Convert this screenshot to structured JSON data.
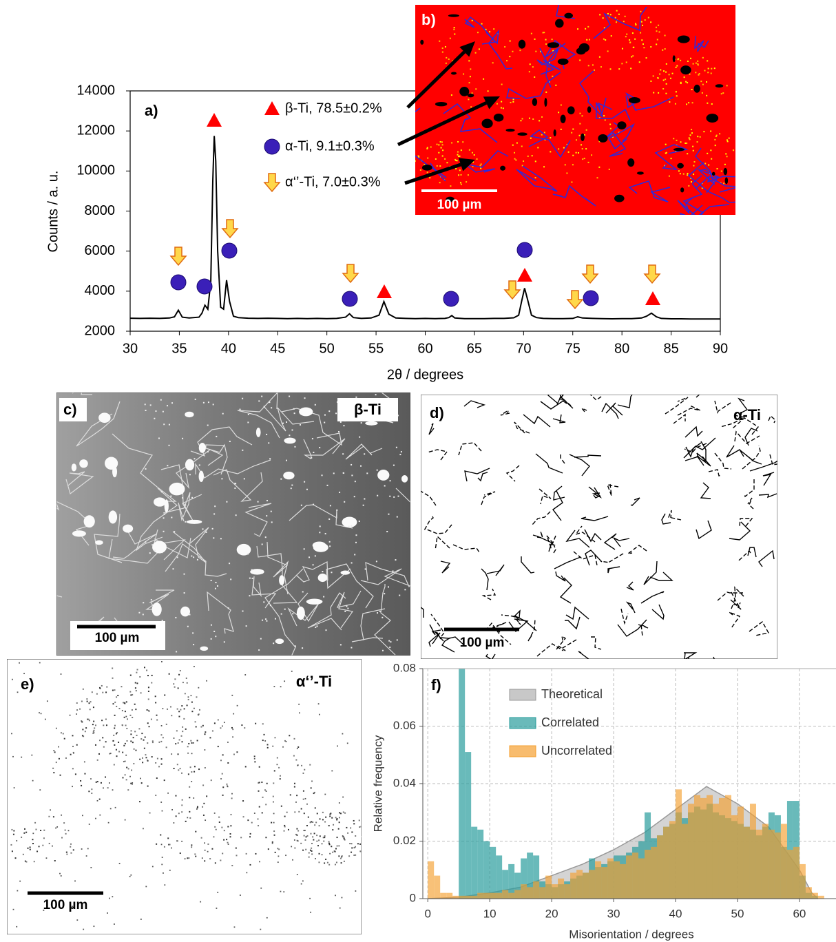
{
  "chart_data": [
    {
      "type": "line",
      "panel_label": "a)",
      "x_label": "2θ / degrees",
      "y_label": "Counts / a. u.",
      "annotations": [
        "β-Ti, 78.5±0.2%",
        "α-Ti, 9.1±0.3%",
        "α‘’-Ti, 7.0±0.3%"
      ],
      "color": "#000000",
      "x": [
        30,
        31,
        32,
        33,
        34,
        34.5,
        34.9,
        35.3,
        36,
        37,
        37.3,
        37.6,
        37.9,
        38.2,
        38.4,
        38.55,
        38.7,
        38.9,
        39.2,
        39.5,
        39.8,
        40.1,
        40.5,
        41,
        42,
        43,
        44,
        45,
        46,
        47,
        48,
        49,
        50,
        51,
        51.9,
        52.3,
        52.7,
        53.5,
        54.5,
        55.3,
        55.8,
        56.3,
        57,
        58,
        59,
        60,
        61,
        62,
        62.4,
        62.7,
        63,
        64,
        65,
        66,
        67,
        68,
        69,
        69.5,
        69.8,
        70.1,
        70.4,
        70.8,
        71.3,
        72,
        73,
        74,
        75,
        75.5,
        76,
        77,
        78,
        79,
        80,
        81,
        82,
        82.5,
        83,
        83.5,
        84,
        85,
        86,
        87,
        88,
        89,
        90
      ],
      "values": [
        2650,
        2640,
        2650,
        2640,
        2660,
        2720,
        3050,
        2700,
        2660,
        2700,
        2900,
        3300,
        3100,
        4500,
        9500,
        11750,
        10500,
        6000,
        3200,
        3100,
        4550,
        3500,
        2750,
        2680,
        2650,
        2640,
        2650,
        2640,
        2630,
        2640,
        2630,
        2640,
        2630,
        2640,
        2700,
        2870,
        2680,
        2640,
        2660,
        2800,
        3480,
        2850,
        2660,
        2640,
        2630,
        2640,
        2630,
        2640,
        2680,
        2780,
        2660,
        2630,
        2630,
        2630,
        2640,
        2640,
        2670,
        2800,
        3500,
        4150,
        3600,
        2800,
        2680,
        2640,
        2630,
        2630,
        2640,
        2720,
        2660,
        2640,
        2630,
        2620,
        2630,
        2630,
        2660,
        2750,
        2900,
        2720,
        2640,
        2620,
        2620,
        2610,
        2610,
        2610,
        2610
      ],
      "xlim": [
        30,
        90
      ],
      "xticks": [
        30,
        35,
        40,
        45,
        50,
        55,
        60,
        65,
        70,
        75,
        80,
        85,
        90
      ],
      "ylim": [
        2000,
        14000
      ],
      "yticks": [
        2000,
        4000,
        6000,
        8000,
        10000,
        12000,
        14000
      ]
    },
    {
      "type": "histogram",
      "panel_label": "f)",
      "x_label": "Misorientation / degrees",
      "y_label": "Relative frequency",
      "bins": [
        0,
        1,
        2,
        3,
        4,
        5,
        6,
        7,
        8,
        9,
        10,
        11,
        12,
        13,
        14,
        15,
        16,
        17,
        18,
        19,
        20,
        21,
        22,
        23,
        24,
        25,
        26,
        27,
        28,
        29,
        30,
        31,
        32,
        33,
        34,
        35,
        36,
        37,
        38,
        39,
        40,
        41,
        42,
        43,
        44,
        45,
        46,
        47,
        48,
        49,
        50,
        51,
        52,
        53,
        54,
        55,
        56,
        57,
        58,
        59,
        60,
        61,
        62,
        63,
        64,
        65
      ],
      "series": [
        {
          "name": "Theoretical",
          "color": "#b0b0b0",
          "x": [
            0,
            5,
            10,
            15,
            20,
            25,
            30,
            35,
            40,
            45,
            50,
            55,
            60,
            62,
            63
          ],
          "values": [
            0,
            0.0005,
            0.002,
            0.004,
            0.008,
            0.012,
            0.017,
            0.023,
            0.031,
            0.039,
            0.033,
            0.025,
            0.01,
            0.002,
            0
          ]
        },
        {
          "name": "Correlated",
          "color": "#2a9d9c",
          "values": [
            0,
            0,
            0,
            0,
            0,
            0.08,
            0.051,
            0.025,
            0.024,
            0.02,
            0.018,
            0.015,
            0.01,
            0.012,
            0.009,
            0.014,
            0.016,
            0.015,
            0.006,
            0.005,
            0.004,
            0.005,
            0.006,
            0.007,
            0.008,
            0.009,
            0.014,
            0.011,
            0.012,
            0.013,
            0.015,
            0.015,
            0.016,
            0.018,
            0.02,
            0.03,
            0.021,
            0.022,
            0.025,
            0.026,
            0.03,
            0.028,
            0.03,
            0.032,
            0.031,
            0.033,
            0.03,
            0.029,
            0.028,
            0.027,
            0.026,
            0.025,
            0.024,
            0.022,
            0.025,
            0.03,
            0.029,
            0.018,
            0.034,
            0.034,
            0.008,
            0.002,
            0.001,
            0,
            0
          ]
        },
        {
          "name": "Uncorrelated",
          "color": "#f5a030",
          "values": [
            0.013,
            0.008,
            0.002,
            0.002,
            0.001,
            0.001,
            0.001,
            0.001,
            0.002,
            0.002,
            0.002,
            0.002,
            0.003,
            0.002,
            0.003,
            0.005,
            0.004,
            0.006,
            0.004,
            0.008,
            0.005,
            0.007,
            0.005,
            0.009,
            0.01,
            0.009,
            0.01,
            0.013,
            0.011,
            0.014,
            0.013,
            0.012,
            0.015,
            0.016,
            0.014,
            0.017,
            0.018,
            0.022,
            0.025,
            0.027,
            0.038,
            0.026,
            0.033,
            0.036,
            0.035,
            0.036,
            0.033,
            0.035,
            0.036,
            0.029,
            0.032,
            0.025,
            0.033,
            0.024,
            0.026,
            0.024,
            0.023,
            0.026,
            0.017,
            0.018,
            0.012,
            0.004,
            0.002,
            0.001,
            0
          ]
        }
      ],
      "xlim": [
        -0.8,
        65.9
      ],
      "xticks": [
        0,
        10,
        20,
        30,
        40,
        50,
        60
      ],
      "ylim": [
        0,
        0.08
      ],
      "yticks": [
        0,
        0.02,
        0.04,
        0.06,
        0.08
      ],
      "grid": true
    }
  ],
  "micrographs": [
    {
      "label": "b)",
      "scale_bar": "100 µm"
    },
    {
      "label": "c)",
      "phase": "β-Ti",
      "scale_bar": "100 µm"
    },
    {
      "label": "d)",
      "phase": "α-Ti",
      "scale_bar": "100 µm"
    },
    {
      "label": "e)",
      "phase": "α‘’-Ti",
      "scale_bar": "100 µm"
    }
  ]
}
